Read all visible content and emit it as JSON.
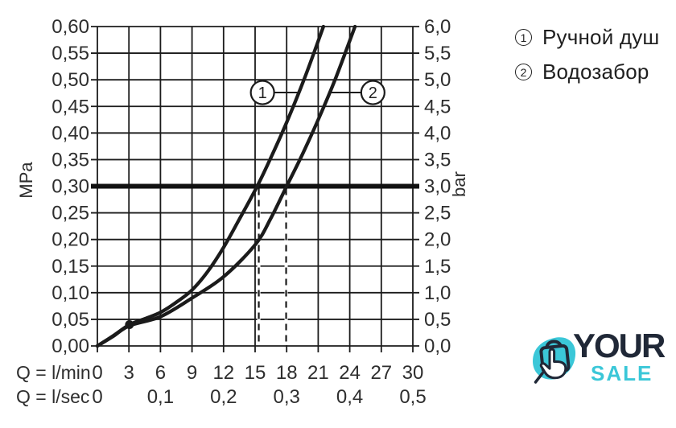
{
  "legend": {
    "items": [
      {
        "num": "1",
        "label": "Ручной душ"
      },
      {
        "num": "2",
        "label": "Водозабор"
      }
    ]
  },
  "logo": {
    "word1": "YOUR",
    "word2": "SALE",
    "navy": "#202837",
    "teal": "#3bc7d8"
  },
  "chart_data": {
    "type": "line",
    "title": "",
    "ink_color": "#1b1b1b",
    "text_color": "#2e2e2e",
    "x_axis": {
      "row1_label": "Q = l/min",
      "row1_ticks": [
        0,
        3,
        6,
        9,
        12,
        15,
        18,
        21,
        24,
        27,
        30
      ],
      "row1_tick_text": [
        "0",
        "3",
        "6",
        "9",
        "12",
        "15",
        "18",
        "21",
        "24",
        "27",
        "30"
      ],
      "row2_label": "Q = l/sec",
      "row2_ticks": [
        {
          "text": "0",
          "at_lmin": 0
        },
        {
          "text": "0,1",
          "at_lmin": 6
        },
        {
          "text": "0,2",
          "at_lmin": 12
        },
        {
          "text": "0,3",
          "at_lmin": 18
        },
        {
          "text": "0,4",
          "at_lmin": 24
        },
        {
          "text": "0,5",
          "at_lmin": 30
        }
      ],
      "range_lmin": [
        0,
        30
      ],
      "grid_step_lmin": 3
    },
    "y_axis_left": {
      "unit": "MPa",
      "range_mpa": [
        0,
        0.6
      ],
      "grid_step_mpa": 0.05,
      "tick_text_bottom_to_top": [
        "0,00",
        "0,05",
        "0,10",
        "0,15",
        "0,20",
        "0,25",
        "0,30",
        "0,35",
        "0,40",
        "0,45",
        "0,50",
        "0,55",
        "0,60"
      ]
    },
    "y_axis_right": {
      "unit": "bar",
      "range_bar": [
        0,
        6
      ],
      "tick_text_bottom_to_top": [
        "0,0",
        "0,5",
        "1,0",
        "1,5",
        "2,0",
        "2,5",
        "3,0",
        "3,5",
        "4,0",
        "4,5",
        "5,0",
        "5,5",
        "6,0"
      ]
    },
    "series": [
      {
        "id": "1",
        "name": "Ручной душ",
        "points_lmin_mpa": [
          [
            0,
            0
          ],
          [
            1.5,
            0.019
          ],
          [
            3.05,
            0.04
          ],
          [
            4.5,
            0.051
          ],
          [
            6,
            0.063
          ],
          [
            7.5,
            0.082
          ],
          [
            9,
            0.105
          ],
          [
            10.5,
            0.14
          ],
          [
            12,
            0.185
          ],
          [
            13.5,
            0.238
          ],
          [
            15.2,
            0.3
          ],
          [
            16.6,
            0.358
          ],
          [
            18,
            0.42
          ],
          [
            19.8,
            0.508
          ],
          [
            21.5,
            0.6
          ]
        ]
      },
      {
        "id": "2",
        "name": "Водозабор",
        "points_lmin_mpa": [
          [
            0,
            0
          ],
          [
            1.5,
            0.018
          ],
          [
            3.05,
            0.038
          ],
          [
            6,
            0.055
          ],
          [
            9,
            0.09
          ],
          [
            12,
            0.13
          ],
          [
            15,
            0.19
          ],
          [
            16.5,
            0.24
          ],
          [
            18,
            0.3
          ],
          [
            19.5,
            0.36
          ],
          [
            21,
            0.425
          ],
          [
            22.7,
            0.505
          ],
          [
            24.5,
            0.6
          ]
        ]
      }
    ],
    "reference_line": {
      "mpa": 0.3,
      "bar": 3.0
    },
    "dashed_guides_lmin": [
      15.35,
      17.95
    ],
    "marker_dot": {
      "lmin": 3.05,
      "mpa": 0.04
    },
    "callouts": [
      {
        "num": "1",
        "center_lmin": 15.7,
        "center_mpa": 0.476,
        "leader_to_lmin": 19.05
      },
      {
        "num": "2",
        "center_lmin": 26.2,
        "center_mpa": 0.476,
        "leader_to_lmin": 22.1
      }
    ],
    "grid": true,
    "legend_position": "top-right"
  }
}
